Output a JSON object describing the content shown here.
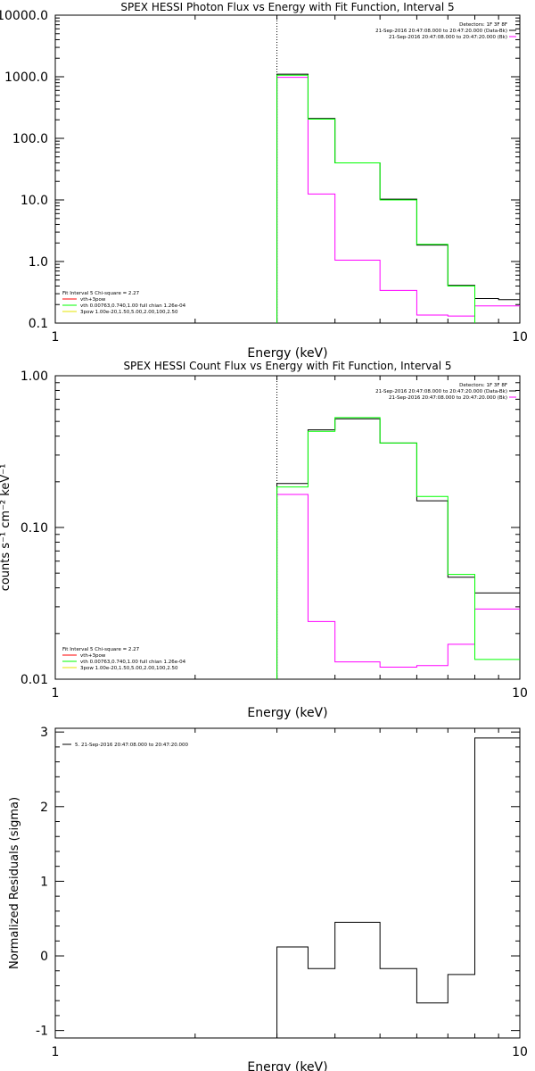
{
  "colors": {
    "axes": "#000000",
    "magenta": "#ff00ff",
    "green": "#00ff00",
    "yellow": "#e6e600",
    "red": "#ff0000",
    "black": "#000000"
  },
  "chart_data": [
    {
      "type": "line",
      "title": "SPEX HESSI Photon Flux vs Energy with Fit Function, Interval 5",
      "xlabel": "Energy (keV)",
      "ylabel": "",
      "x_scale": "log",
      "y_scale": "log",
      "xlim": [
        1,
        10
      ],
      "ylim": [
        0.1,
        10000
      ],
      "x_ticks": [
        "1",
        "10"
      ],
      "y_ticks": [
        "0.1",
        "1.0",
        "10.0",
        "100.0",
        "1000.0",
        "10000.0"
      ],
      "vline_x": 3,
      "edges": [
        3,
        3.5,
        4,
        5,
        6,
        7,
        8,
        9,
        10
      ],
      "legend_top": [
        "Detectors: 1F 3F 8F",
        "21-Sep-2016 20:47:08.000 to 20:47:20.000 (Data-Bk)",
        "21-Sep-2016 20:47:08.000 to 20:47:20.000 (Bk)"
      ],
      "legend_bottom": [
        "Fit Interval 5   Chi-square = 2.27",
        "vth+3pow",
        "vth 0.00763,0.740,1.00  full chian 1.26e-04",
        "3pow 1.00e-20,1.50,5.00,2.00,100,2.50"
      ],
      "series": [
        {
          "name": "21-Sep-2016 20:47:08.000 to 20:47:20.000 (Data-Bk)",
          "role": "data",
          "values": [
            1100,
            210,
            40,
            10.3,
            1.85,
            0.41,
            0.25,
            0.24
          ]
        },
        {
          "name": "vth+3pow",
          "role": "model",
          "values": [
            1060,
            205,
            40,
            10.0,
            1.9,
            0.4,
            0.095,
            0.095
          ]
        },
        {
          "name": "21-Sep-2016 20:47:08.000 to 20:47:20.000 (Bk)",
          "role": "background",
          "values": [
            980,
            12.5,
            1.05,
            0.34,
            0.135,
            0.13,
            0.19,
            0.19
          ]
        }
      ]
    },
    {
      "type": "line",
      "title": "SPEX HESSI Count Flux vs Energy with Fit Function, Interval 5",
      "xlabel": "Energy (keV)",
      "ylabel": "counts s⁻¹ cm⁻² keV⁻¹",
      "x_scale": "log",
      "y_scale": "log",
      "xlim": [
        1,
        10
      ],
      "ylim": [
        0.01,
        1.0
      ],
      "x_ticks": [
        "1",
        "10"
      ],
      "y_ticks": [
        "0.01",
        "0.10",
        "1.00"
      ],
      "vline_x": 3,
      "edges": [
        3,
        3.5,
        4,
        5,
        6,
        7,
        8,
        9,
        10
      ],
      "legend_top": [
        "Detectors: 1F 3F 8F",
        "21-Sep-2016 20:47:08.000 to 20:47:20.000 (Data-Bk)",
        "21-Sep-2016 20:47:08.000 to 20:47:20.000 (Bk)"
      ],
      "legend_bottom": [
        "Fit Interval 5   Chi-square = 2.27",
        "vth+3pow",
        "vth 0.00763,0.740,1.00  full chian 1.26e-04",
        "3pow 1.00e-20,1.50,5.00,2.00,100,2.50"
      ],
      "series": [
        {
          "name": "21-Sep-2016 20:47:08.000 to 20:47:20.000 (Data-Bk)",
          "role": "data",
          "values": [
            0.195,
            0.44,
            0.52,
            0.36,
            0.15,
            0.047,
            0.037,
            0.037
          ]
        },
        {
          "name": "vth+3pow",
          "role": "model",
          "values": [
            0.185,
            0.43,
            0.53,
            0.36,
            0.16,
            0.049,
            0.0135,
            0.0135
          ]
        },
        {
          "name": "21-Sep-2016 20:47:08.000 to 20:47:20.000 (Bk)",
          "role": "background",
          "values": [
            0.165,
            0.024,
            0.013,
            0.012,
            0.0123,
            0.017,
            0.029,
            0.029
          ]
        }
      ]
    },
    {
      "type": "line",
      "title": "",
      "xlabel": "Energy (keV)",
      "ylabel": "Normalized Residuals (sigma)",
      "x_scale": "log",
      "y_scale": "linear",
      "xlim": [
        1,
        10
      ],
      "ylim": [
        -1.1,
        3.05
      ],
      "x_ticks": [
        "1",
        "10"
      ],
      "y_ticks": [
        "-1",
        "0",
        "1",
        "2",
        "3"
      ],
      "edges": [
        3,
        3.5,
        4,
        5,
        6,
        7,
        8,
        9,
        10
      ],
      "legend_top": [
        "5. 21-Sep-2016 20:47:08.000 to 20:47:20.000"
      ],
      "series": [
        {
          "name": "5. 21-Sep-2016 20:47:08.000 to 20:47:20.000",
          "role": "residual",
          "values": [
            0.12,
            -0.17,
            0.45,
            -0.17,
            -0.63,
            -0.25,
            2.92,
            2.92
          ]
        }
      ]
    }
  ]
}
